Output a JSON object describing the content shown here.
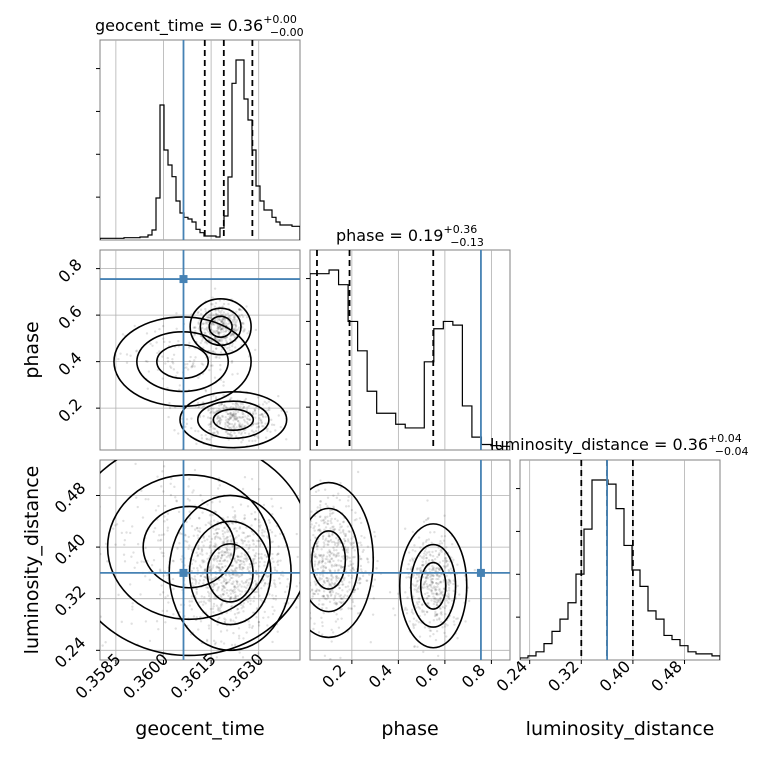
{
  "chart_data": {
    "type": "corner",
    "colors": {
      "truth": "#4682b4",
      "hist": "#000000",
      "density": "#000000",
      "grid": "#b0b0b0"
    },
    "params": [
      {
        "name": "geocent_time",
        "label": "geocent_time",
        "range": [
          0.358,
          0.3643
        ],
        "ticks": [
          0.3585,
          0.36,
          0.3615,
          0.363
        ],
        "tick_labels": [
          "0.3585",
          "0.3600",
          "0.3615",
          "0.3630"
        ],
        "truth": 0.36063
      },
      {
        "name": "phase",
        "label": "phase",
        "range": [
          0.02,
          0.88
        ],
        "ticks": [
          0.2,
          0.4,
          0.6,
          0.8
        ],
        "tick_labels": [
          "0.2",
          "0.4",
          "0.6",
          "0.8"
        ],
        "truth": 0.755
      },
      {
        "name": "luminosity_distance",
        "label": "luminosity_distance",
        "range": [
          0.225,
          0.535
        ],
        "ticks": [
          0.24,
          0.32,
          0.4,
          0.48
        ],
        "tick_labels": [
          "0.24",
          "0.32",
          "0.40",
          "0.48"
        ],
        "truth": 0.36
      }
    ],
    "titles": [
      {
        "name": "geocent_time",
        "value": "0.36",
        "plus": "+0.00",
        "minus": "−0.00"
      },
      {
        "name": "phase",
        "value": "0.19",
        "plus": "+0.36",
        "minus": "−0.13"
      },
      {
        "name": "luminosity_distance",
        "value": "0.36",
        "plus": "+0.04",
        "minus": "−0.04"
      }
    ],
    "histograms": [
      {
        "param": "geocent_time",
        "bins_range": [
          0.358,
          0.3643
        ],
        "counts": [
          0.5,
          0.5,
          0.5,
          0.5,
          0.5,
          0.5,
          0.7,
          0.7,
          0.7,
          0.7,
          0.9,
          0.9,
          1.5,
          3,
          12.6,
          40.5,
          27,
          22.5,
          19,
          11.7,
          8.1,
          6.8,
          6.3,
          5.4,
          3.2,
          2.2,
          1.2,
          1.2,
          1.2,
          0.9,
          3.6,
          7.2,
          18.9,
          47,
          54,
          54,
          42.3,
          36,
          27,
          16.2,
          11.7,
          9,
          9,
          6.8,
          5.4,
          4.5,
          4.5,
          4.5,
          4.1,
          4.1
        ],
        "quantiles": [
          0.3613,
          0.3619,
          0.3628
        ]
      },
      {
        "param": "phase",
        "bins_range": [
          0.02,
          0.88
        ],
        "counts": [
          48,
          48,
          49,
          45,
          35,
          27,
          16,
          10,
          10,
          7,
          6,
          6,
          24,
          33,
          35,
          34,
          12,
          3.5,
          1.5,
          1.2,
          1
        ],
        "quantiles": [
          0.05,
          0.19,
          0.55
        ]
      },
      {
        "param": "luminosity_distance",
        "bins_range": [
          0.225,
          0.535
        ],
        "counts": [
          0.5,
          1,
          2,
          4,
          7,
          10,
          14,
          21,
          32,
          44,
          44,
          43,
          37,
          28,
          22,
          18,
          12,
          10,
          6,
          5,
          3.5,
          2,
          1.5,
          1.5,
          1
        ],
        "quantiles": [
          0.32,
          0.36,
          0.4
        ]
      }
    ]
  }
}
